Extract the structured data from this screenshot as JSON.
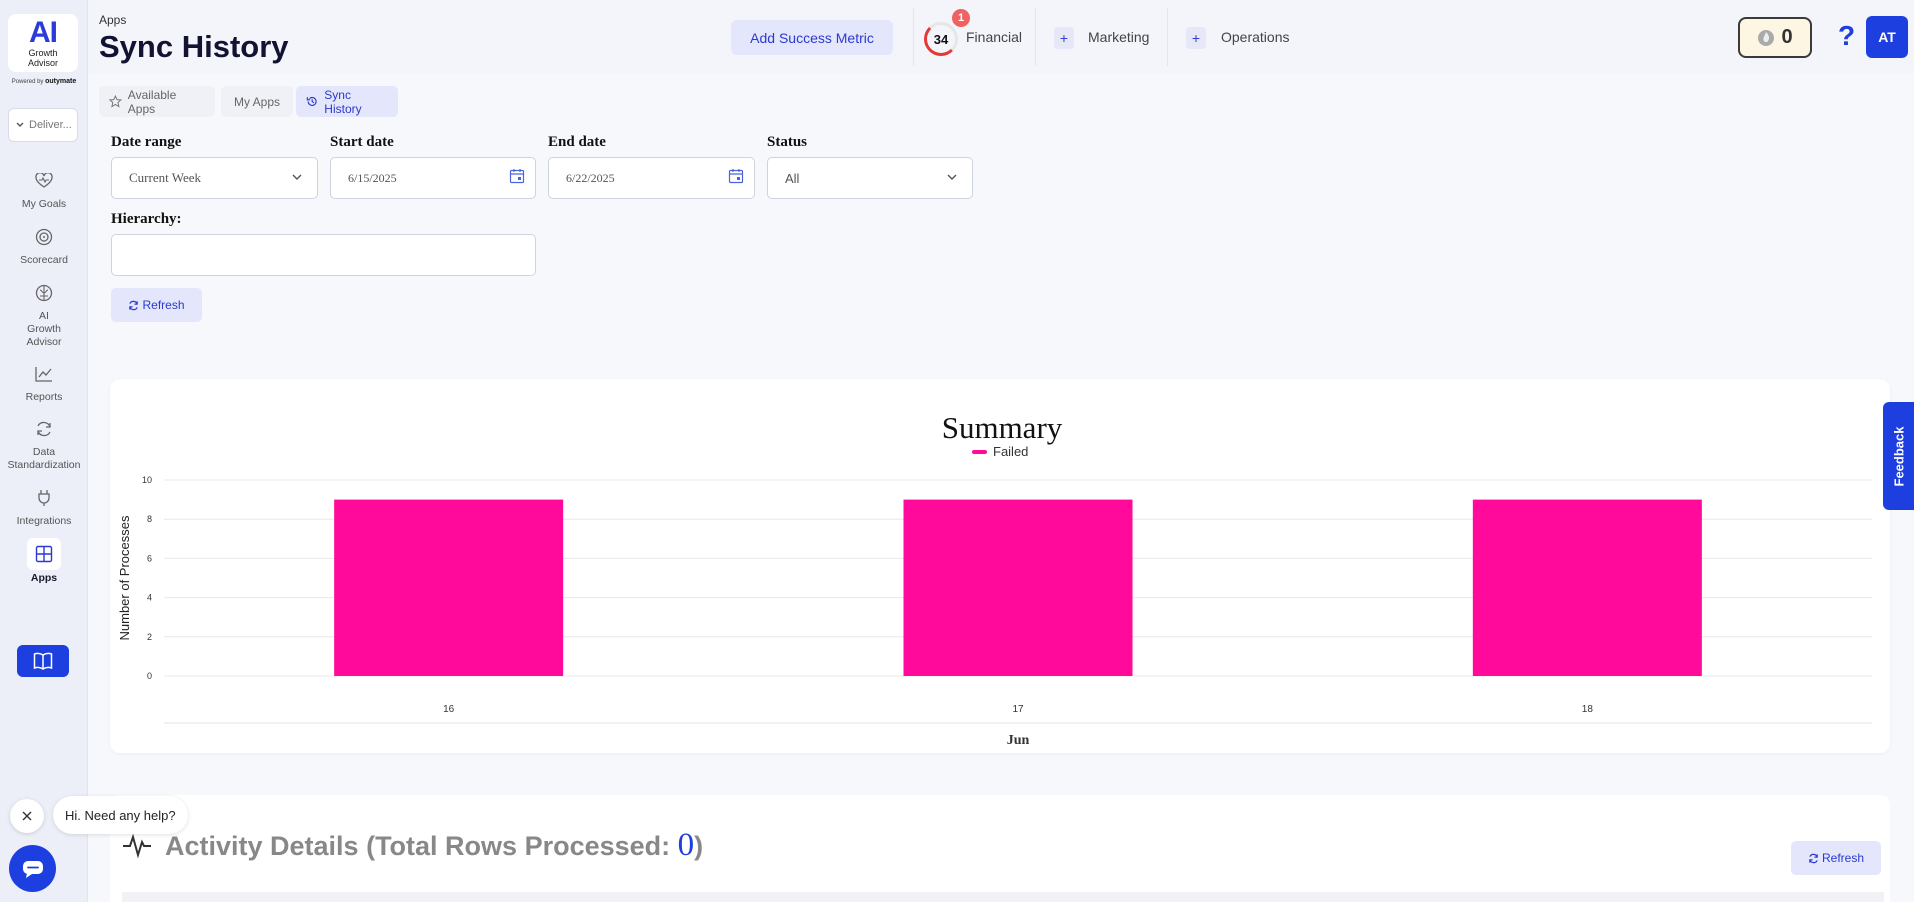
{
  "brand": {
    "logo_text": "AI",
    "logo_sub_1": "Growth",
    "logo_sub_2": "Advisor",
    "powered_prefix": "Powered by",
    "powered_name": "outymate"
  },
  "sidebar": {
    "selector_value": "Deliver...",
    "items": [
      {
        "label": "My Goals",
        "icon": "heart-pulse-icon"
      },
      {
        "label": "Scorecard",
        "icon": "target-icon"
      },
      {
        "label": "AI Growth Advisor",
        "icon": "brain-icon"
      },
      {
        "label": "Reports",
        "icon": "line-chart-icon"
      },
      {
        "label": "Data Standardization",
        "icon": "sync-icon"
      },
      {
        "label": "Integrations",
        "icon": "plug-icon"
      },
      {
        "label": "Apps",
        "icon": "grid-icon"
      }
    ]
  },
  "header": {
    "breadcrumb": "Apps",
    "title": "Sync History",
    "add_metric_label": "Add Success Metric",
    "score": "34",
    "score_badge": "1",
    "financial_label": "Financial",
    "marketing_label": "Marketing",
    "operations_label": "Operations",
    "plus": "+",
    "streak_count": "0",
    "help": "?",
    "avatar_initials": "AT"
  },
  "tabs": [
    {
      "label": "Available Apps"
    },
    {
      "label": "My Apps"
    },
    {
      "label": "Sync History"
    }
  ],
  "filters": {
    "date_range_label": "Date range",
    "date_range_value": "Current Week",
    "start_date_label": "Start date",
    "start_date_value": "6/15/2025",
    "end_date_label": "End date",
    "end_date_value": "6/22/2025",
    "status_label": "Status",
    "status_value": "All",
    "hierarchy_label": "Hierarchy:",
    "hierarchy_value": "",
    "refresh_label": "Refresh"
  },
  "chart_data": {
    "type": "bar",
    "title": "Summary",
    "xlabel": "Jun",
    "ylabel": "Number of Processes",
    "categories": [
      "16",
      "17",
      "18"
    ],
    "series": [
      {
        "name": "Failed",
        "values": [
          9,
          9,
          9
        ],
        "color": "#ff0a9a"
      }
    ],
    "yticks": [
      "0",
      "2",
      "4",
      "6",
      "8",
      "10"
    ],
    "ylim": [
      0,
      10
    ],
    "grid": true,
    "legend": "top-center"
  },
  "activity": {
    "title_prefix": "Activity Details (Total Rows Processed: ",
    "total_rows": "0",
    "title_suffix": ")",
    "refresh_label": "Refresh"
  },
  "chat": {
    "message": "Hi. Need any help?"
  },
  "feedback_label": "Feedback"
}
